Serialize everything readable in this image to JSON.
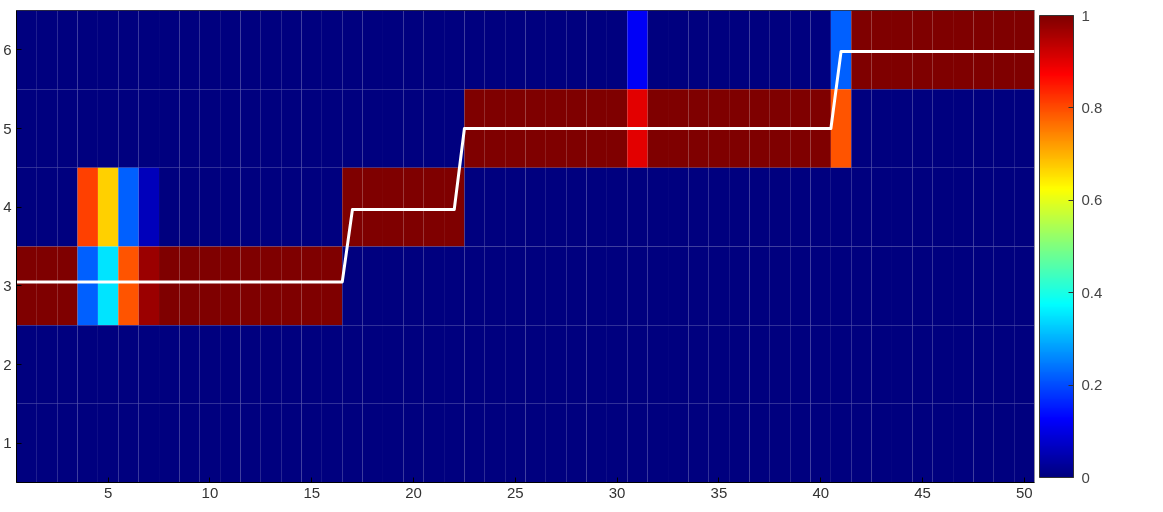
{
  "chart_data": {
    "type": "heatmap",
    "x": [
      1,
      2,
      3,
      4,
      5,
      6,
      7,
      8,
      9,
      10,
      11,
      12,
      13,
      14,
      15,
      16,
      17,
      18,
      19,
      20,
      21,
      22,
      23,
      24,
      25,
      26,
      27,
      28,
      29,
      30,
      31,
      32,
      33,
      34,
      35,
      36,
      37,
      38,
      39,
      40,
      41,
      42,
      43,
      44,
      45,
      46,
      47,
      48,
      49,
      50
    ],
    "ylim": [
      0.5,
      6.5
    ],
    "yticks": [
      1,
      2,
      3,
      4,
      5,
      6
    ],
    "cells": [
      [
        0,
        0,
        0,
        0,
        0,
        0,
        0,
        0,
        0,
        0,
        0,
        0,
        0,
        0,
        0,
        0,
        0,
        0,
        0,
        0,
        0,
        0,
        0,
        0,
        0,
        0,
        0,
        0,
        0,
        0,
        0.12,
        0,
        0,
        0,
        0,
        0,
        0,
        0,
        0,
        0,
        0.22,
        1,
        1,
        1,
        1,
        1,
        1,
        1,
        1,
        1
      ],
      [
        0,
        0,
        0,
        0,
        0,
        0,
        0,
        0,
        0,
        0,
        0,
        0,
        0,
        0,
        0,
        0,
        0,
        0,
        0,
        0,
        0,
        0,
        1,
        1,
        1,
        1,
        1,
        1,
        1,
        1,
        0.9,
        1,
        1,
        1,
        1,
        1,
        1,
        1,
        1,
        1,
        0.79,
        0,
        0,
        0,
        0,
        0,
        0,
        0,
        0,
        0
      ],
      [
        0,
        0,
        0,
        0.81,
        0.67,
        0.22,
        0.06,
        0,
        0,
        0,
        0,
        0,
        0,
        0,
        0,
        0,
        1,
        1,
        1,
        1,
        1,
        1,
        0,
        0,
        0,
        0,
        0,
        0,
        0,
        0,
        0,
        0,
        0,
        0,
        0,
        0,
        0,
        0,
        0,
        0,
        0,
        0,
        0,
        0,
        0,
        0,
        0,
        0,
        0,
        0
      ],
      [
        1,
        1,
        1,
        0.22,
        0.35,
        0.79,
        0.97,
        1,
        1,
        1,
        1,
        1,
        1,
        1,
        1,
        1,
        0,
        0,
        0,
        0,
        0,
        0,
        0,
        0,
        0,
        0,
        0,
        0,
        0,
        0,
        0,
        0,
        0,
        0,
        0,
        0,
        0,
        0,
        0,
        0,
        0,
        0,
        0,
        0,
        0,
        0,
        0,
        0,
        0,
        0
      ],
      [
        0,
        0,
        0,
        0,
        0,
        0,
        0,
        0,
        0,
        0,
        0,
        0,
        0,
        0,
        0,
        0,
        0,
        0,
        0,
        0,
        0,
        0,
        0,
        0,
        0,
        0,
        0,
        0,
        0,
        0,
        0,
        0,
        0,
        0,
        0,
        0,
        0,
        0,
        0,
        0,
        0,
        0,
        0,
        0,
        0,
        0,
        0,
        0,
        0,
        0
      ],
      [
        0,
        0,
        0,
        0,
        0,
        0,
        0,
        0,
        0,
        0,
        0,
        0,
        0,
        0,
        0,
        0,
        0,
        0,
        0,
        0,
        0,
        0,
        0,
        0,
        0,
        0,
        0,
        0,
        0,
        0,
        0,
        0,
        0,
        0,
        0,
        0,
        0,
        0,
        0,
        0,
        0,
        0,
        0,
        0,
        0,
        0,
        0,
        0,
        0,
        0
      ]
    ],
    "xlim": [
      0.5,
      50.5
    ],
    "xticks": [
      5,
      10,
      15,
      20,
      25,
      30,
      35,
      40,
      45,
      50
    ],
    "clim": [
      0,
      1
    ],
    "cticks": [
      0,
      0.2,
      0.4,
      0.6,
      0.8,
      1
    ],
    "series": [
      {
        "type": "line",
        "color": "#ffffff",
        "x": [
          0.5,
          16.5,
          17,
          22,
          22.5,
          40.5,
          41,
          50.5
        ],
        "values": [
          3.05,
          3.05,
          3.97,
          3.97,
          5,
          5,
          5.98,
          5.98
        ]
      }
    ],
    "grid": false
  }
}
